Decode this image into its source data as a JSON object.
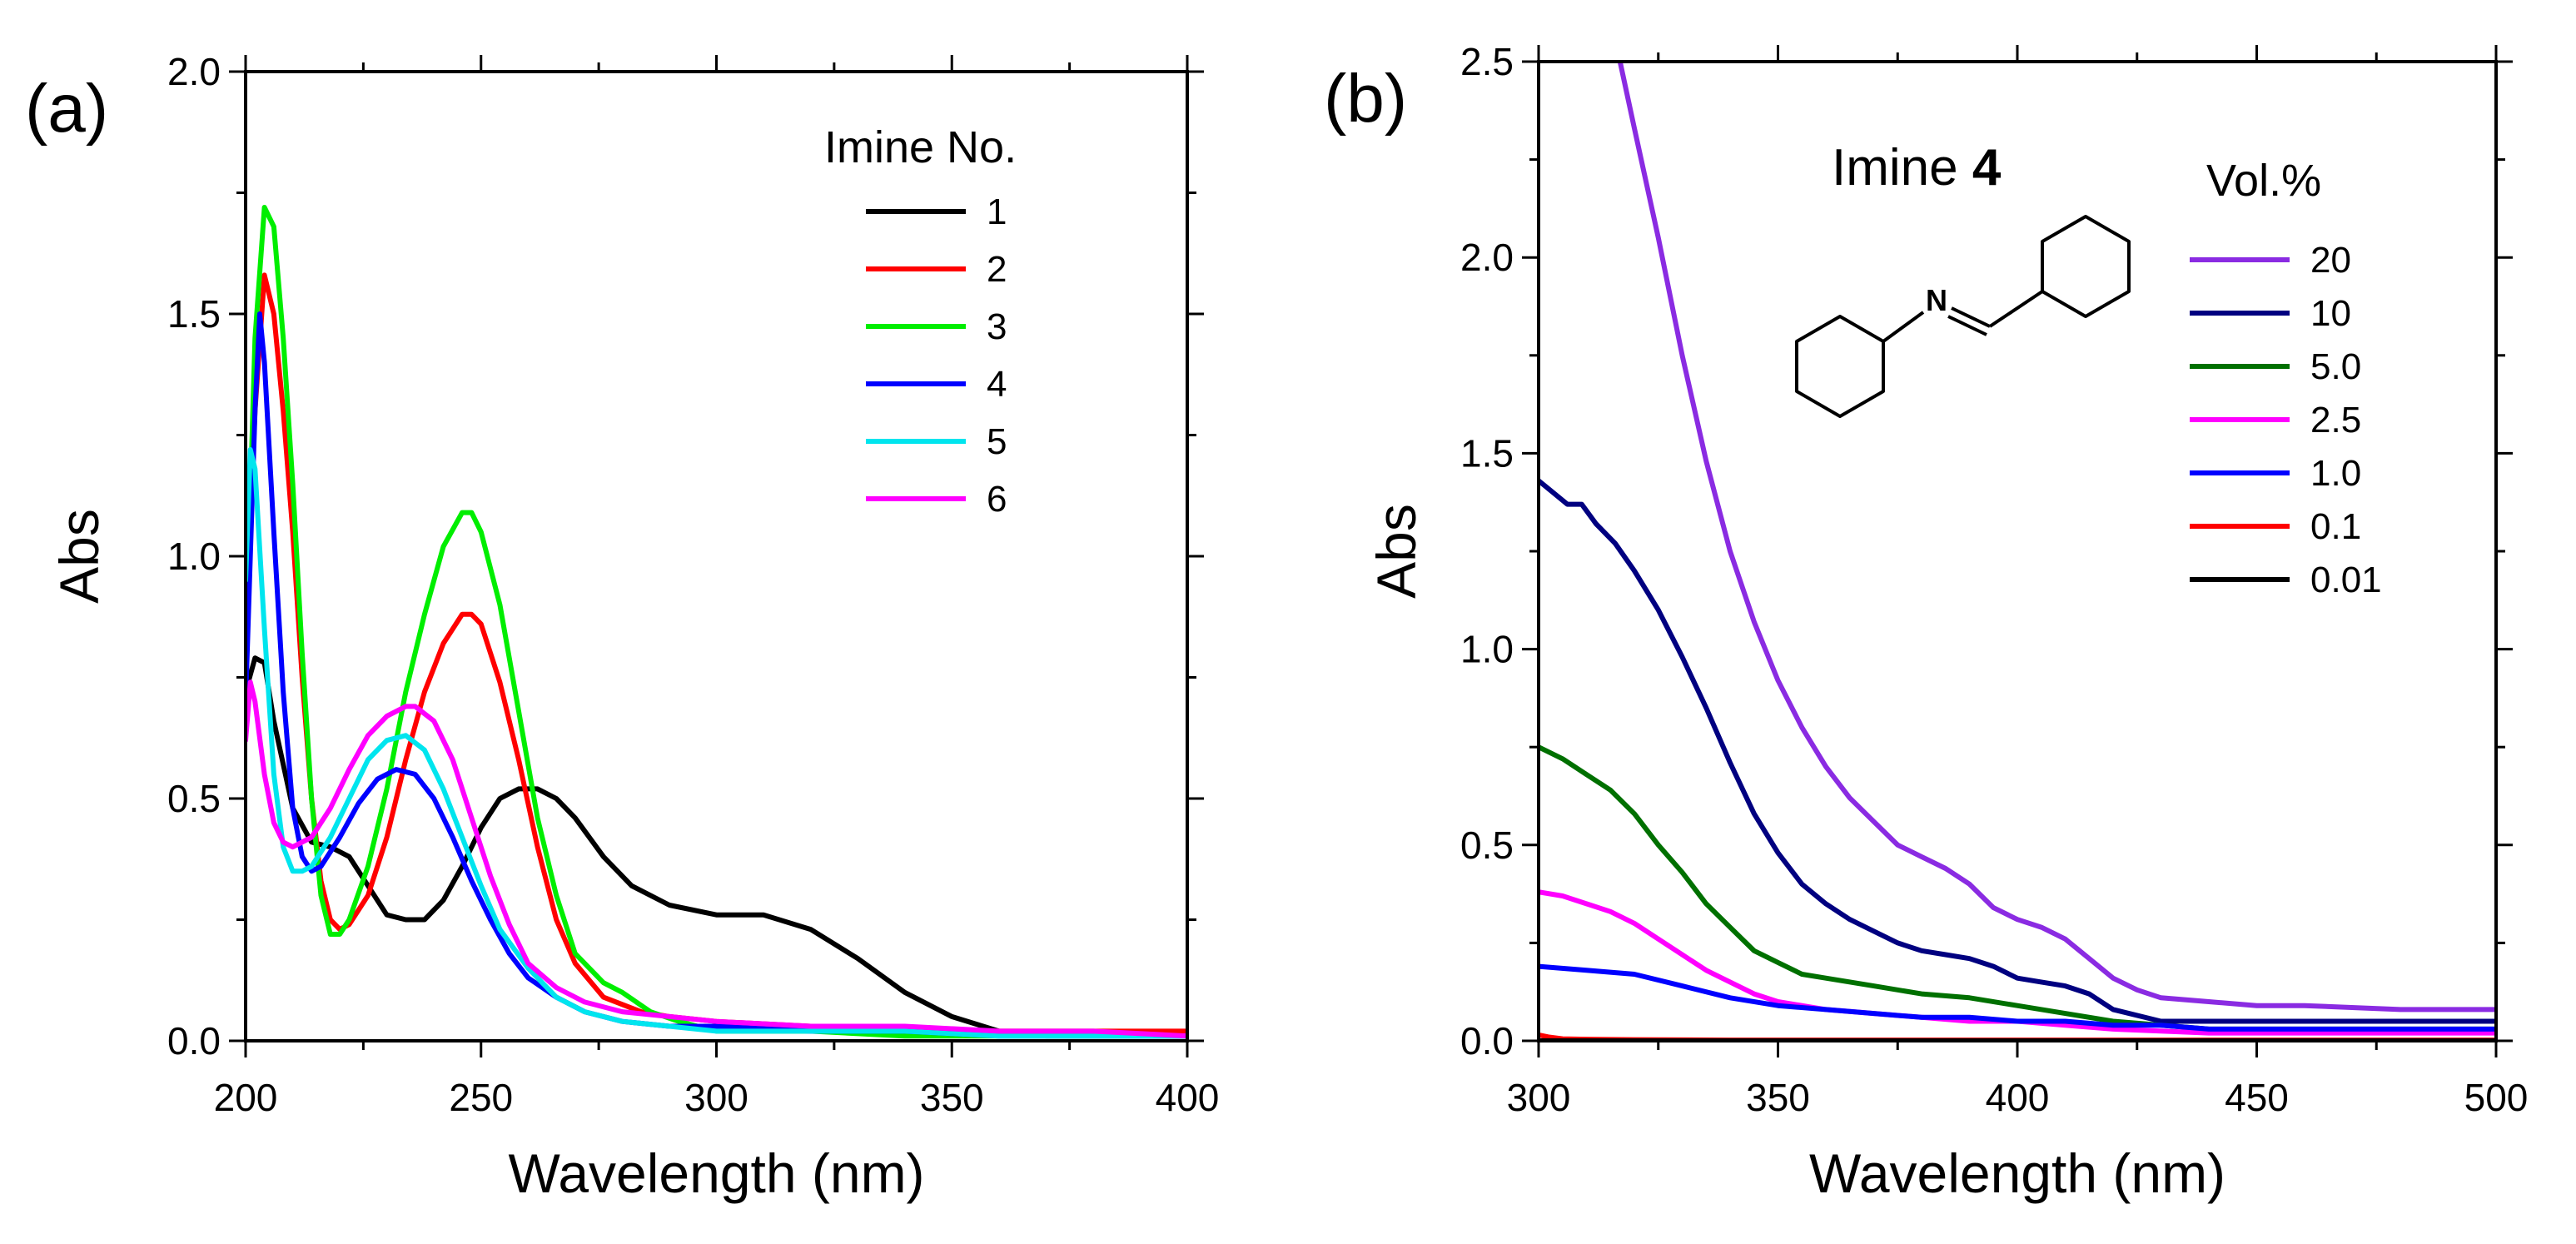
{
  "chart_data": [
    {
      "type": "line",
      "panel_label": "(a)",
      "xlabel": "Wavelength (nm)",
      "ylabel": "Abs",
      "xlim": [
        200,
        400
      ],
      "ylim": [
        0.0,
        2.0
      ],
      "x_ticks": [
        200,
        250,
        300,
        350,
        400
      ],
      "y_ticks": [
        0.0,
        0.5,
        1.0,
        1.5,
        2.0
      ],
      "x_tick_labels": [
        "200",
        "250",
        "300",
        "350",
        "400"
      ],
      "y_tick_labels": [
        "0.0",
        "0.5",
        "1.0",
        "1.5",
        "2.0"
      ],
      "legend_title": "Imine No.",
      "legend_position": "top-right",
      "series": [
        {
          "name": "1",
          "color": "#000000",
          "x": [
            200,
            202,
            204,
            206,
            210,
            214,
            218,
            222,
            226,
            230,
            234,
            238,
            242,
            246,
            250,
            254,
            258,
            262,
            266,
            270,
            276,
            282,
            290,
            300,
            310,
            320,
            330,
            340,
            350,
            360,
            370,
            380,
            390,
            400
          ],
          "y": [
            0.72,
            0.79,
            0.78,
            0.66,
            0.48,
            0.41,
            0.4,
            0.38,
            0.32,
            0.26,
            0.25,
            0.25,
            0.29,
            0.36,
            0.44,
            0.5,
            0.52,
            0.52,
            0.5,
            0.46,
            0.38,
            0.32,
            0.28,
            0.26,
            0.26,
            0.23,
            0.17,
            0.1,
            0.05,
            0.02,
            0.01,
            0.01,
            0.01,
            0.01
          ]
        },
        {
          "name": "2",
          "color": "#ff0000",
          "x": [
            200,
            202,
            204,
            206,
            208,
            210,
            212,
            214,
            216,
            218,
            220,
            222,
            226,
            230,
            234,
            238,
            242,
            246,
            248,
            250,
            254,
            258,
            262,
            266,
            270,
            276,
            284,
            290,
            300,
            320,
            340,
            360,
            380,
            400
          ],
          "y": [
            0.85,
            1.3,
            1.58,
            1.5,
            1.3,
            1.05,
            0.75,
            0.5,
            0.33,
            0.25,
            0.23,
            0.24,
            0.3,
            0.42,
            0.58,
            0.72,
            0.82,
            0.88,
            0.88,
            0.86,
            0.74,
            0.58,
            0.4,
            0.25,
            0.16,
            0.09,
            0.06,
            0.05,
            0.04,
            0.03,
            0.02,
            0.02,
            0.02,
            0.02
          ]
        },
        {
          "name": "3",
          "color": "#00ee00",
          "x": [
            200,
            202,
            204,
            206,
            208,
            210,
            212,
            214,
            216,
            218,
            220,
            222,
            226,
            230,
            234,
            238,
            242,
            246,
            248,
            250,
            254,
            258,
            262,
            266,
            270,
            276,
            280,
            286,
            292,
            300,
            320,
            340,
            360,
            380,
            400
          ],
          "y": [
            0.8,
            1.45,
            1.72,
            1.68,
            1.45,
            1.15,
            0.8,
            0.5,
            0.3,
            0.22,
            0.22,
            0.25,
            0.36,
            0.52,
            0.72,
            0.88,
            1.02,
            1.09,
            1.09,
            1.05,
            0.9,
            0.68,
            0.46,
            0.3,
            0.18,
            0.12,
            0.1,
            0.06,
            0.04,
            0.02,
            0.02,
            0.01,
            0.01,
            0.01,
            0.01
          ]
        },
        {
          "name": "4",
          "color": "#0000ff",
          "x": [
            200,
            202,
            203,
            204,
            206,
            208,
            210,
            212,
            214,
            216,
            220,
            224,
            228,
            232,
            236,
            240,
            244,
            248,
            252,
            256,
            260,
            266,
            272,
            280,
            290,
            300,
            320,
            340,
            360,
            380,
            400
          ],
          "y": [
            0.7,
            1.3,
            1.5,
            1.4,
            1.05,
            0.72,
            0.48,
            0.38,
            0.35,
            0.36,
            0.42,
            0.49,
            0.54,
            0.56,
            0.55,
            0.5,
            0.42,
            0.33,
            0.25,
            0.18,
            0.13,
            0.09,
            0.06,
            0.04,
            0.03,
            0.03,
            0.02,
            0.02,
            0.01,
            0.01,
            0.01
          ]
        },
        {
          "name": "5",
          "color": "#00e5ee",
          "x": [
            200,
            201,
            202,
            204,
            206,
            208,
            210,
            212,
            214,
            218,
            222,
            226,
            230,
            234,
            238,
            242,
            246,
            250,
            254,
            260,
            266,
            272,
            280,
            290,
            300,
            320,
            340,
            360,
            380,
            400
          ],
          "y": [
            0.95,
            1.22,
            1.18,
            0.85,
            0.55,
            0.4,
            0.35,
            0.35,
            0.36,
            0.42,
            0.5,
            0.58,
            0.62,
            0.63,
            0.6,
            0.52,
            0.42,
            0.32,
            0.23,
            0.15,
            0.09,
            0.06,
            0.04,
            0.03,
            0.02,
            0.02,
            0.02,
            0.01,
            0.01,
            0.01
          ]
        },
        {
          "name": "6",
          "color": "#ff00ff",
          "x": [
            200,
            201,
            202,
            204,
            206,
            208,
            210,
            214,
            218,
            222,
            226,
            230,
            234,
            236,
            240,
            244,
            248,
            252,
            256,
            260,
            266,
            272,
            280,
            290,
            300,
            320,
            340,
            360,
            380,
            400
          ],
          "y": [
            0.62,
            0.74,
            0.7,
            0.55,
            0.45,
            0.41,
            0.4,
            0.42,
            0.48,
            0.56,
            0.63,
            0.67,
            0.69,
            0.69,
            0.66,
            0.58,
            0.46,
            0.34,
            0.24,
            0.16,
            0.11,
            0.08,
            0.06,
            0.05,
            0.04,
            0.03,
            0.03,
            0.02,
            0.02,
            0.01
          ]
        }
      ]
    },
    {
      "type": "line",
      "panel_label": "(b)",
      "xlabel": "Wavelength (nm)",
      "ylabel": "Abs",
      "xlim": [
        300,
        500
      ],
      "ylim": [
        0.0,
        2.5
      ],
      "x_ticks": [
        300,
        350,
        400,
        450,
        500
      ],
      "y_ticks": [
        0.0,
        0.5,
        1.0,
        1.5,
        2.0,
        2.5
      ],
      "x_tick_labels": [
        "300",
        "350",
        "400",
        "450",
        "500"
      ],
      "y_tick_labels": [
        "0.0",
        "0.5",
        "1.0",
        "1.5",
        "2.0",
        "2.5"
      ],
      "annotation": {
        "prefix": "Imine ",
        "number": "4",
        "atom_label": "N"
      },
      "legend_title": "Vol.%",
      "legend_position": "top-right",
      "series": [
        {
          "name": "20",
          "color": "#8a2be2",
          "x": [
            317,
            320,
            325,
            330,
            335,
            340,
            345,
            350,
            355,
            360,
            365,
            370,
            375,
            380,
            385,
            390,
            395,
            400,
            405,
            410,
            415,
            420,
            425,
            430,
            440,
            450,
            460,
            480,
            500
          ],
          "y": [
            2.5,
            2.33,
            2.05,
            1.75,
            1.48,
            1.25,
            1.07,
            0.92,
            0.8,
            0.7,
            0.62,
            0.56,
            0.5,
            0.47,
            0.44,
            0.4,
            0.34,
            0.31,
            0.29,
            0.26,
            0.21,
            0.16,
            0.13,
            0.11,
            0.1,
            0.09,
            0.09,
            0.08,
            0.08
          ]
        },
        {
          "name": "10",
          "color": "#000080",
          "x": [
            300,
            303,
            306,
            309,
            312,
            316,
            320,
            325,
            330,
            335,
            340,
            345,
            350,
            355,
            360,
            365,
            370,
            375,
            380,
            385,
            390,
            395,
            400,
            405,
            410,
            415,
            420,
            430,
            440,
            460,
            480,
            500
          ],
          "y": [
            1.43,
            1.4,
            1.37,
            1.37,
            1.32,
            1.27,
            1.2,
            1.1,
            0.98,
            0.85,
            0.71,
            0.58,
            0.48,
            0.4,
            0.35,
            0.31,
            0.28,
            0.25,
            0.23,
            0.22,
            0.21,
            0.19,
            0.16,
            0.15,
            0.14,
            0.12,
            0.08,
            0.05,
            0.05,
            0.05,
            0.05,
            0.05
          ]
        },
        {
          "name": "5.0",
          "color": "#007000",
          "x": [
            300,
            305,
            310,
            315,
            320,
            325,
            330,
            335,
            340,
            345,
            350,
            355,
            360,
            370,
            380,
            390,
            400,
            410,
            420,
            440,
            460,
            480,
            500
          ],
          "y": [
            0.75,
            0.72,
            0.68,
            0.64,
            0.58,
            0.5,
            0.43,
            0.35,
            0.29,
            0.23,
            0.2,
            0.17,
            0.16,
            0.14,
            0.12,
            0.11,
            0.09,
            0.07,
            0.05,
            0.03,
            0.03,
            0.03,
            0.03
          ]
        },
        {
          "name": "2.5",
          "color": "#ff00ff",
          "x": [
            300,
            305,
            310,
            315,
            320,
            325,
            330,
            335,
            340,
            345,
            350,
            355,
            360,
            370,
            380,
            390,
            400,
            410,
            420,
            440,
            460,
            480,
            500
          ],
          "y": [
            0.38,
            0.37,
            0.35,
            0.33,
            0.3,
            0.26,
            0.22,
            0.18,
            0.15,
            0.12,
            0.1,
            0.09,
            0.08,
            0.07,
            0.06,
            0.05,
            0.05,
            0.04,
            0.03,
            0.02,
            0.02,
            0.02,
            0.02
          ]
        },
        {
          "name": "1.0",
          "color": "#0000ff",
          "x": [
            300,
            310,
            320,
            330,
            340,
            350,
            360,
            370,
            380,
            390,
            400,
            410,
            420,
            430,
            440,
            460,
            480,
            500
          ],
          "y": [
            0.19,
            0.18,
            0.17,
            0.14,
            0.11,
            0.09,
            0.08,
            0.07,
            0.06,
            0.06,
            0.05,
            0.05,
            0.04,
            0.04,
            0.03,
            0.03,
            0.03,
            0.03
          ]
        },
        {
          "name": "0.1",
          "color": "#ff0000",
          "x": [
            300,
            302,
            305,
            310,
            320,
            340,
            360,
            400,
            450,
            500
          ],
          "y": [
            0.015,
            0.01,
            0.005,
            0.004,
            0.003,
            0.002,
            0.002,
            0.002,
            0.002,
            0.002
          ]
        },
        {
          "name": "0.01",
          "color": "#000000",
          "x": [
            300,
            350,
            400,
            450,
            500
          ],
          "y": [
            0.0,
            0.0,
            0.0,
            0.0,
            0.0
          ]
        }
      ]
    }
  ]
}
